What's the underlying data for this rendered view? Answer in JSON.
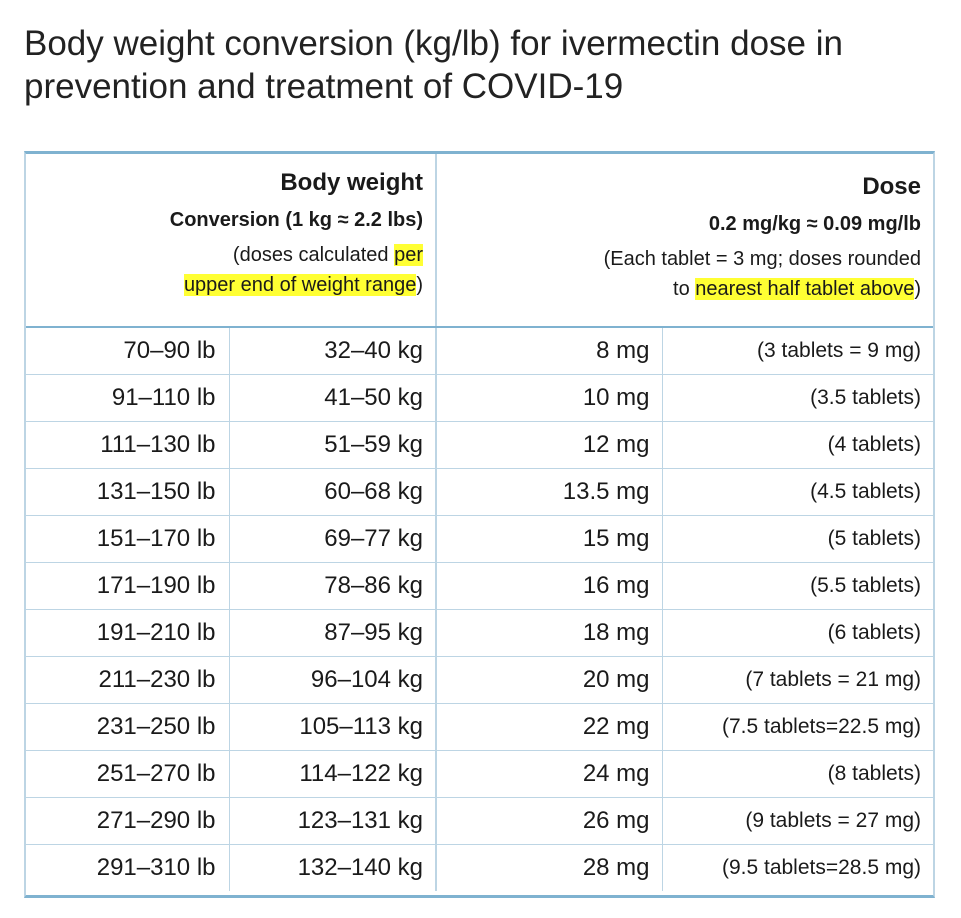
{
  "title": "Body weight conversion (kg/lb) for ivermectin dose in prevention and treatment of COVID-19",
  "header": {
    "left": {
      "title": "Body weight",
      "subtitle": "Conversion (1 kg ≈ 2.2 lbs)",
      "note_plain": "(doses calculated ",
      "note_highlight_1": "per",
      "note_highlight_2": "upper end of weight range",
      "note_end": ")"
    },
    "right": {
      "title": "Dose",
      "subtitle": "0.2 mg/kg ≈ 0.09 mg/lb",
      "note_line1": "(Each tablet = 3 mg; doses rounded",
      "note_prefix": "to ",
      "note_highlight": "nearest half tablet above",
      "note_end": ")"
    }
  },
  "highlight_color": "#ffff33",
  "border_color": "#7fb2d0",
  "rows": [
    {
      "lb": "70–90 lb",
      "kg": "32–40 kg",
      "mg": "8 mg",
      "tablets": "(3 tablets = 9 mg)"
    },
    {
      "lb": "91–110 lb",
      "kg": "41–50 kg",
      "mg": "10 mg",
      "tablets": "(3.5 tablets)"
    },
    {
      "lb": "111–130 lb",
      "kg": "51–59 kg",
      "mg": "12 mg",
      "tablets": "(4 tablets)"
    },
    {
      "lb": "131–150 lb",
      "kg": "60–68 kg",
      "mg": "13.5 mg",
      "tablets": "(4.5 tablets)"
    },
    {
      "lb": "151–170 lb",
      "kg": "69–77 kg",
      "mg": "15 mg",
      "tablets": "(5 tablets)"
    },
    {
      "lb": "171–190 lb",
      "kg": "78–86 kg",
      "mg": "16 mg",
      "tablets": "(5.5 tablets)"
    },
    {
      "lb": "191–210 lb",
      "kg": "87–95 kg",
      "mg": "18 mg",
      "tablets": "(6 tablets)"
    },
    {
      "lb": "211–230 lb",
      "kg": "96–104 kg",
      "mg": "20 mg",
      "tablets": "(7 tablets = 21 mg)"
    },
    {
      "lb": "231–250 lb",
      "kg": "105–113 kg",
      "mg": "22 mg",
      "tablets": "(7.5 tablets=22.5 mg)"
    },
    {
      "lb": "251–270 lb",
      "kg": "114–122 kg",
      "mg": "24 mg",
      "tablets": "(8 tablets)"
    },
    {
      "lb": "271–290 lb",
      "kg": "123–131 kg",
      "mg": "26 mg",
      "tablets": "(9 tablets = 27 mg)"
    },
    {
      "lb": "291–310 lb",
      "kg": "132–140 kg",
      "mg": "28 mg",
      "tablets": "(9.5 tablets=28.5 mg)"
    }
  ]
}
